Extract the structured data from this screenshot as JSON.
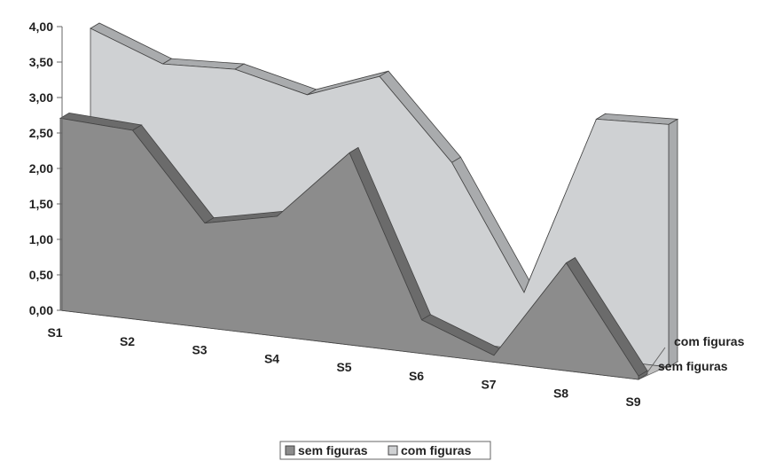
{
  "chart_data": {
    "type": "area",
    "three_d": true,
    "categories": [
      "S1",
      "S2",
      "S3",
      "S4",
      "S5",
      "S6",
      "S7",
      "S8",
      "S9"
    ],
    "series": [
      {
        "name": "sem figuras",
        "values": [
          2.85,
          2.8,
          1.55,
          1.78,
          2.85,
          0.5,
          0.1,
          1.6,
          0.05
        ]
      },
      {
        "name": "com figuras",
        "values": [
          4.0,
          3.6,
          3.65,
          3.4,
          3.8,
          2.65,
          0.85,
          3.55,
          3.6
        ]
      }
    ],
    "y_ticks": [
      "0,00",
      "0,50",
      "1,00",
      "1,50",
      "2,00",
      "2,50",
      "3,00",
      "3,50",
      "4,00"
    ],
    "ylim": [
      0,
      4
    ],
    "depth_labels": [
      "com figuras",
      "sem figuras"
    ],
    "legend": {
      "position": "bottom",
      "items": [
        "sem figuras",
        "com figuras"
      ]
    },
    "colors": {
      "sem_front": "#8c8c8c",
      "sem_top": "#6b6b6b",
      "com_front": "#cfd1d3",
      "com_top": "#a9abad",
      "floor": "#bfbfbf",
      "axis": "#666666"
    }
  }
}
